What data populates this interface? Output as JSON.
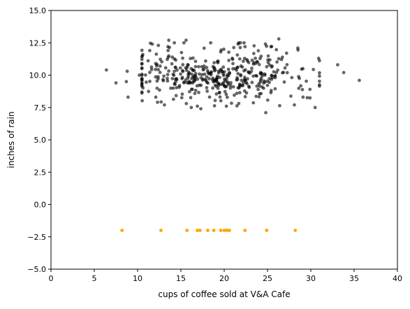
{
  "chart_data": {
    "type": "scatter",
    "title": "",
    "xlabel": "cups of coffee sold at V&A Cafe",
    "ylabel": "inches of rain",
    "xlim": [
      0,
      40
    ],
    "ylim": [
      -5,
      15
    ],
    "xticks": [
      0,
      5,
      10,
      15,
      20,
      25,
      30,
      35,
      40
    ],
    "yticks": [
      -5.0,
      -2.5,
      0.0,
      2.5,
      5.0,
      7.5,
      10.0,
      12.5,
      15.0
    ],
    "xtick_labels": [
      "0",
      "5",
      "10",
      "15",
      "20",
      "25",
      "30",
      "35",
      "40"
    ],
    "ytick_labels": [
      "−5.0",
      "−2.5",
      "0.0",
      "2.5",
      "5.0",
      "7.5",
      "10.0",
      "12.5",
      "15.0"
    ],
    "grid": false,
    "legend": "none",
    "series": [
      {
        "color": "#000000",
        "opacity": 0.6,
        "generator": {
          "n": 420,
          "x_center": 19.5,
          "x_sd": 4.8,
          "y_center": 10.0,
          "y_sd": 1.05,
          "seed": 7
        },
        "points": [
          [
            6.4,
            10.4
          ],
          [
            7.5,
            9.4
          ],
          [
            8.8,
            10.3
          ],
          [
            8.9,
            8.3
          ],
          [
            8.7,
            9.5
          ],
          [
            10.2,
            10.0
          ],
          [
            10.6,
            11.6
          ],
          [
            11.4,
            11.9
          ],
          [
            11.7,
            12.4
          ],
          [
            12.4,
            12.3
          ],
          [
            13.6,
            12.7
          ],
          [
            13.5,
            12.2
          ],
          [
            15.6,
            12.7
          ],
          [
            16.2,
            7.5
          ],
          [
            16.9,
            7.6
          ],
          [
            17.3,
            7.4
          ],
          [
            24.8,
            7.1
          ],
          [
            26.3,
            12.8
          ],
          [
            28.5,
            12.1
          ],
          [
            28.1,
            7.7
          ],
          [
            30.5,
            7.5
          ],
          [
            30.9,
            11.3
          ],
          [
            33.1,
            10.8
          ],
          [
            33.8,
            10.2
          ],
          [
            35.6,
            9.6
          ],
          [
            12.1,
            8.3
          ],
          [
            12.3,
            7.9
          ],
          [
            13.1,
            7.7
          ],
          [
            29.9,
            8.9
          ],
          [
            29.1,
            8.3
          ],
          [
            27.2,
            11.7
          ],
          [
            25.4,
            12.2
          ],
          [
            22.4,
            12.2
          ],
          [
            21.6,
            12.4
          ],
          [
            19.6,
            11.8
          ]
        ]
      },
      {
        "color": "#ffa500",
        "opacity": 1.0,
        "points": [
          [
            8.2,
            -2.0
          ],
          [
            12.7,
            -2.0
          ],
          [
            15.7,
            -2.0
          ],
          [
            16.9,
            -2.0
          ],
          [
            17.2,
            -2.0
          ],
          [
            18.1,
            -2.0
          ],
          [
            18.8,
            -2.0
          ],
          [
            19.6,
            -2.0
          ],
          [
            20.0,
            -2.0
          ],
          [
            20.3,
            -2.0
          ],
          [
            20.6,
            -2.0
          ],
          [
            22.4,
            -2.0
          ],
          [
            24.9,
            -2.0
          ],
          [
            28.2,
            -2.0
          ]
        ]
      }
    ]
  }
}
